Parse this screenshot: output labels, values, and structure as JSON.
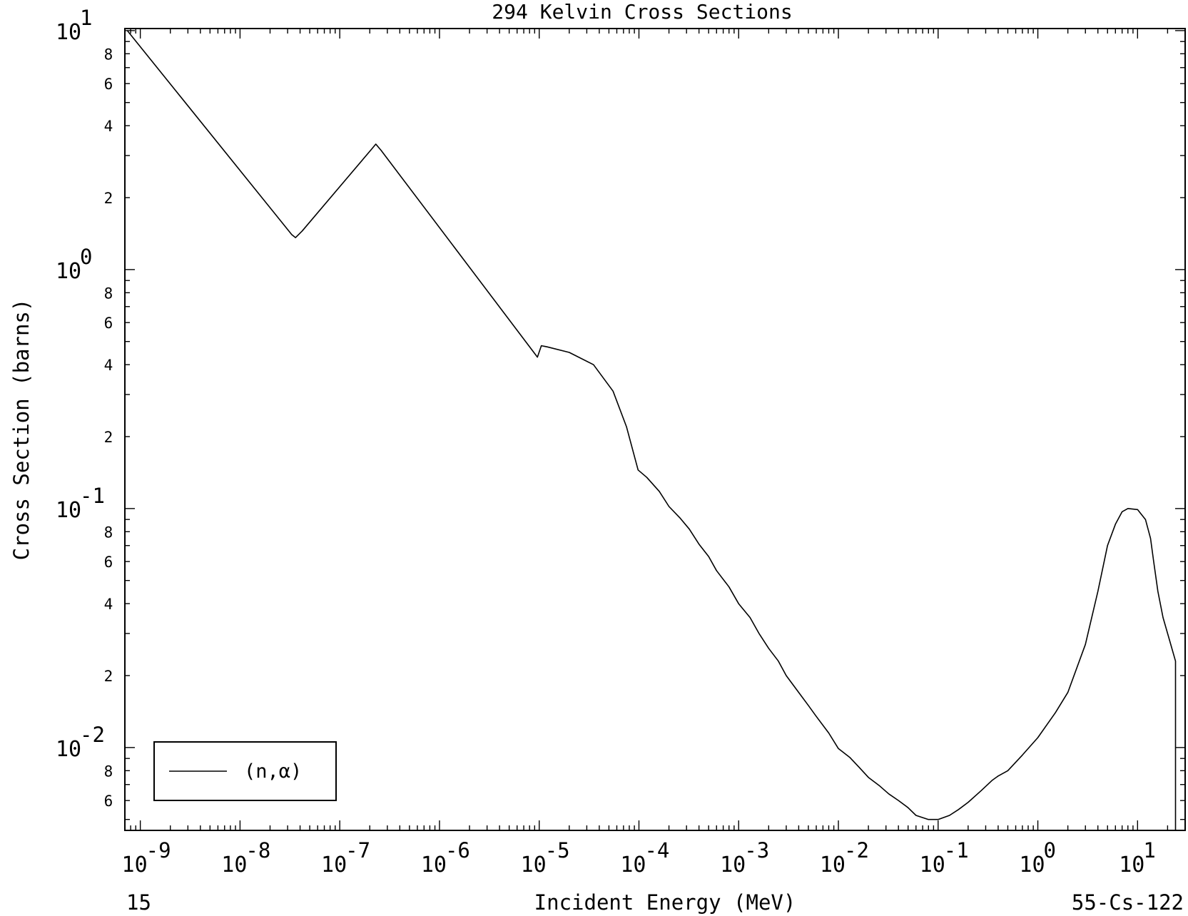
{
  "chart_data": {
    "type": "line",
    "title": "294 Kelvin Cross Sections",
    "xlabel": "Incident Energy (MeV)",
    "ylabel": "Cross Section (barns)",
    "footer_left": "15",
    "footer_right": "55-Cs-122",
    "x_scale": "log",
    "y_scale": "log",
    "xlim": [
      7e-10,
      30
    ],
    "ylim": [
      0.0045,
      10.2
    ],
    "x_ticks": [
      {
        "value": 1e-09,
        "base": "10",
        "exp": "-9"
      },
      {
        "value": 1e-08,
        "base": "10",
        "exp": "-8"
      },
      {
        "value": 1e-07,
        "base": "10",
        "exp": "-7"
      },
      {
        "value": 1e-06,
        "base": "10",
        "exp": "-6"
      },
      {
        "value": 1e-05,
        "base": "10",
        "exp": "-5"
      },
      {
        "value": 0.0001,
        "base": "10",
        "exp": "-4"
      },
      {
        "value": 0.001,
        "base": "10",
        "exp": "-3"
      },
      {
        "value": 0.01,
        "base": "10",
        "exp": "-2"
      },
      {
        "value": 0.1,
        "base": "10",
        "exp": "-1"
      },
      {
        "value": 1,
        "base": "10",
        "exp": "0"
      },
      {
        "value": 10,
        "base": "10",
        "exp": "1"
      }
    ],
    "y_major_ticks": [
      {
        "value": 10,
        "base": "10",
        "exp": "1"
      },
      {
        "value": 1,
        "base": "10",
        "exp": "0"
      },
      {
        "value": 0.1,
        "base": "10",
        "exp": "-1"
      },
      {
        "value": 0.01,
        "base": "10",
        "exp": "-2"
      }
    ],
    "y_minor_labels": [
      {
        "value": 8,
        "label": "8"
      },
      {
        "value": 6,
        "label": "6"
      },
      {
        "value": 4,
        "label": "4"
      },
      {
        "value": 2,
        "label": "2"
      },
      {
        "value": 0.8,
        "label": "8"
      },
      {
        "value": 0.6,
        "label": "6"
      },
      {
        "value": 0.4,
        "label": "4"
      },
      {
        "value": 0.2,
        "label": "2"
      },
      {
        "value": 0.08,
        "label": "8"
      },
      {
        "value": 0.06,
        "label": "6"
      },
      {
        "value": 0.04,
        "label": "4"
      },
      {
        "value": 0.02,
        "label": "2"
      },
      {
        "value": 0.008,
        "label": "8"
      },
      {
        "value": 0.006,
        "label": "6"
      }
    ],
    "grid": false,
    "legend": {
      "position": "bottom-left",
      "entries": [
        "(n,α)"
      ]
    },
    "series": [
      {
        "name": "(n,α)",
        "color": "#000000",
        "x": [
          7.4e-10,
          3.3e-08,
          3.6e-08,
          4.2e-08,
          2.1e-07,
          2.3e-07,
          2.6e-07,
          9.6e-06,
          1.05e-05,
          1.2e-05,
          2e-05,
          3.5e-05,
          5.5e-05,
          7.5e-05,
          9.8e-05,
          0.00012,
          0.00016,
          0.0002,
          0.00026,
          0.00032,
          0.0004,
          0.0005,
          0.0006,
          0.0008,
          0.001,
          0.0013,
          0.0016,
          0.002,
          0.0025,
          0.003,
          0.004,
          0.005,
          0.006,
          0.008,
          0.01,
          0.013,
          0.016,
          0.02,
          0.026,
          0.032,
          0.04,
          0.05,
          0.06,
          0.08,
          0.1,
          0.13,
          0.16,
          0.2,
          0.27,
          0.35,
          0.4,
          0.5,
          0.7,
          1.0,
          1.5,
          2.0,
          3.0,
          4.0,
          5.0,
          6.0,
          7.0,
          8.0,
          10.0,
          12.0,
          13.5,
          14.5,
          16.0,
          18.0,
          21.0,
          24.0,
          24.0
        ],
        "y": [
          10.0,
          1.4,
          1.36,
          1.45,
          3.2,
          3.35,
          3.15,
          0.43,
          0.48,
          0.475,
          0.45,
          0.4,
          0.31,
          0.22,
          0.145,
          0.135,
          0.118,
          0.102,
          0.091,
          0.082,
          0.071,
          0.063,
          0.055,
          0.047,
          0.04,
          0.035,
          0.03,
          0.026,
          0.023,
          0.02,
          0.017,
          0.015,
          0.0135,
          0.0115,
          0.0099,
          0.0091,
          0.0083,
          0.0075,
          0.0069,
          0.0064,
          0.006,
          0.0056,
          0.0052,
          0.005,
          0.005,
          0.0052,
          0.0055,
          0.0059,
          0.0066,
          0.0073,
          0.0076,
          0.008,
          0.0093,
          0.011,
          0.014,
          0.017,
          0.027,
          0.045,
          0.07,
          0.086,
          0.097,
          0.1,
          0.099,
          0.09,
          0.075,
          0.06,
          0.045,
          0.035,
          0.028,
          0.023,
          0.0045
        ]
      }
    ]
  }
}
